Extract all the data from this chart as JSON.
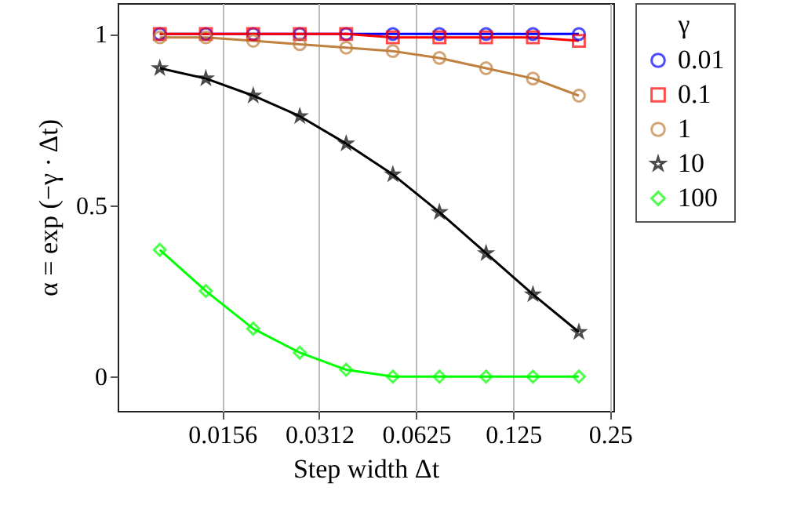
{
  "chart_data": {
    "type": "line",
    "xlabel": "Step width Δt",
    "ylabel": "α = exp (−γ · Δt)",
    "legend_title": "γ",
    "log": "x",
    "grid": "x",
    "legend": "top right",
    "x": [
      0.01,
      0.0139,
      0.0195,
      0.0272,
      0.0379,
      0.0529,
      0.0738,
      0.103,
      0.144,
      0.2
    ],
    "xlim": [
      0.0074,
      0.256
    ],
    "xticks": [
      {
        "value": 0.015625,
        "label": "0.0156"
      },
      {
        "value": 0.03125,
        "label": "0.0312"
      },
      0.0625,
      0.125,
      0.25
    ],
    "ylim": [
      -0.1,
      1.09
    ],
    "yticks": [
      0,
      0.5,
      1
    ],
    "series": [
      {
        "name": "0.01",
        "color": "#0000ff",
        "marker": "circle",
        "values": [
          1,
          1,
          1,
          1,
          1,
          1,
          1,
          1,
          1,
          1
        ]
      },
      {
        "name": "0.1",
        "color": "#ff0000",
        "marker": "square",
        "values": [
          1,
          1,
          1,
          1,
          1,
          0.99,
          0.99,
          0.99,
          0.99,
          0.98
        ]
      },
      {
        "name": "1",
        "color": "#bf8040",
        "marker": "circle",
        "values": [
          0.99,
          0.99,
          0.98,
          0.97,
          0.96,
          0.95,
          0.93,
          0.9,
          0.87,
          0.82
        ]
      },
      {
        "name": "10",
        "color": "#000000",
        "marker": "star",
        "values": [
          0.9,
          0.87,
          0.82,
          0.76,
          0.68,
          0.59,
          0.48,
          0.36,
          0.24,
          0.13
        ]
      },
      {
        "name": "100",
        "color": "#00ff00",
        "marker": "diamond",
        "values": [
          0.37,
          0.25,
          0.14,
          0.07,
          0.02,
          0,
          0,
          0,
          0,
          0
        ]
      }
    ]
  }
}
